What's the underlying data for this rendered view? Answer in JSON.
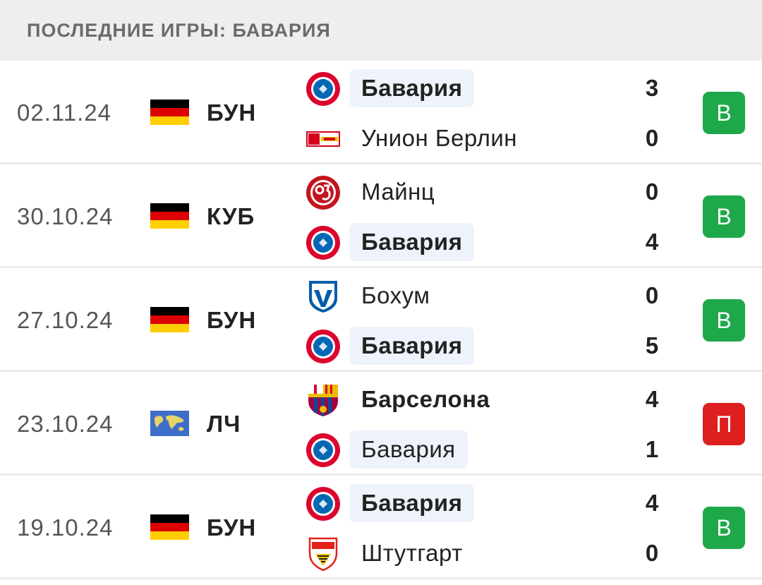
{
  "header": {
    "title": "ПОСЛЕДНИЕ ИГРЫ: БАВАРИЯ"
  },
  "colors": {
    "win": "#1fa84a",
    "loss": "#dd1f1f",
    "highlight": "#eef3fb"
  },
  "matches": [
    {
      "date": "02.11.24",
      "competition": "БУН",
      "flag": "germany-flag",
      "home": {
        "name": "Бавария",
        "score": "3",
        "logo": "bayern-logo",
        "highlight": true,
        "bold": true
      },
      "away": {
        "name": "Унион Берлин",
        "score": "0",
        "logo": "union-berlin-logo",
        "highlight": false,
        "bold": false
      },
      "result": "В",
      "result_type": "win"
    },
    {
      "date": "30.10.24",
      "competition": "КУБ",
      "flag": "germany-flag",
      "home": {
        "name": "Майнц",
        "score": "0",
        "logo": "mainz-logo",
        "highlight": false,
        "bold": false
      },
      "away": {
        "name": "Бавария",
        "score": "4",
        "logo": "bayern-logo",
        "highlight": true,
        "bold": true
      },
      "result": "В",
      "result_type": "win"
    },
    {
      "date": "27.10.24",
      "competition": "БУН",
      "flag": "germany-flag",
      "home": {
        "name": "Бохум",
        "score": "0",
        "logo": "bochum-logo",
        "highlight": false,
        "bold": false
      },
      "away": {
        "name": "Бавария",
        "score": "5",
        "logo": "bayern-logo",
        "highlight": true,
        "bold": true
      },
      "result": "В",
      "result_type": "win"
    },
    {
      "date": "23.10.24",
      "competition": "ЛЧ",
      "flag": "world-flag",
      "home": {
        "name": "Барселона",
        "score": "4",
        "logo": "barcelona-logo",
        "highlight": false,
        "bold": true
      },
      "away": {
        "name": "Бавария",
        "score": "1",
        "logo": "bayern-logo",
        "highlight": true,
        "bold": false
      },
      "result": "П",
      "result_type": "loss"
    },
    {
      "date": "19.10.24",
      "competition": "БУН",
      "flag": "germany-flag",
      "home": {
        "name": "Бавария",
        "score": "4",
        "logo": "bayern-logo",
        "highlight": true,
        "bold": true
      },
      "away": {
        "name": "Штутгарт",
        "score": "0",
        "logo": "stuttgart-logo",
        "highlight": false,
        "bold": false
      },
      "result": "В",
      "result_type": "win"
    }
  ]
}
